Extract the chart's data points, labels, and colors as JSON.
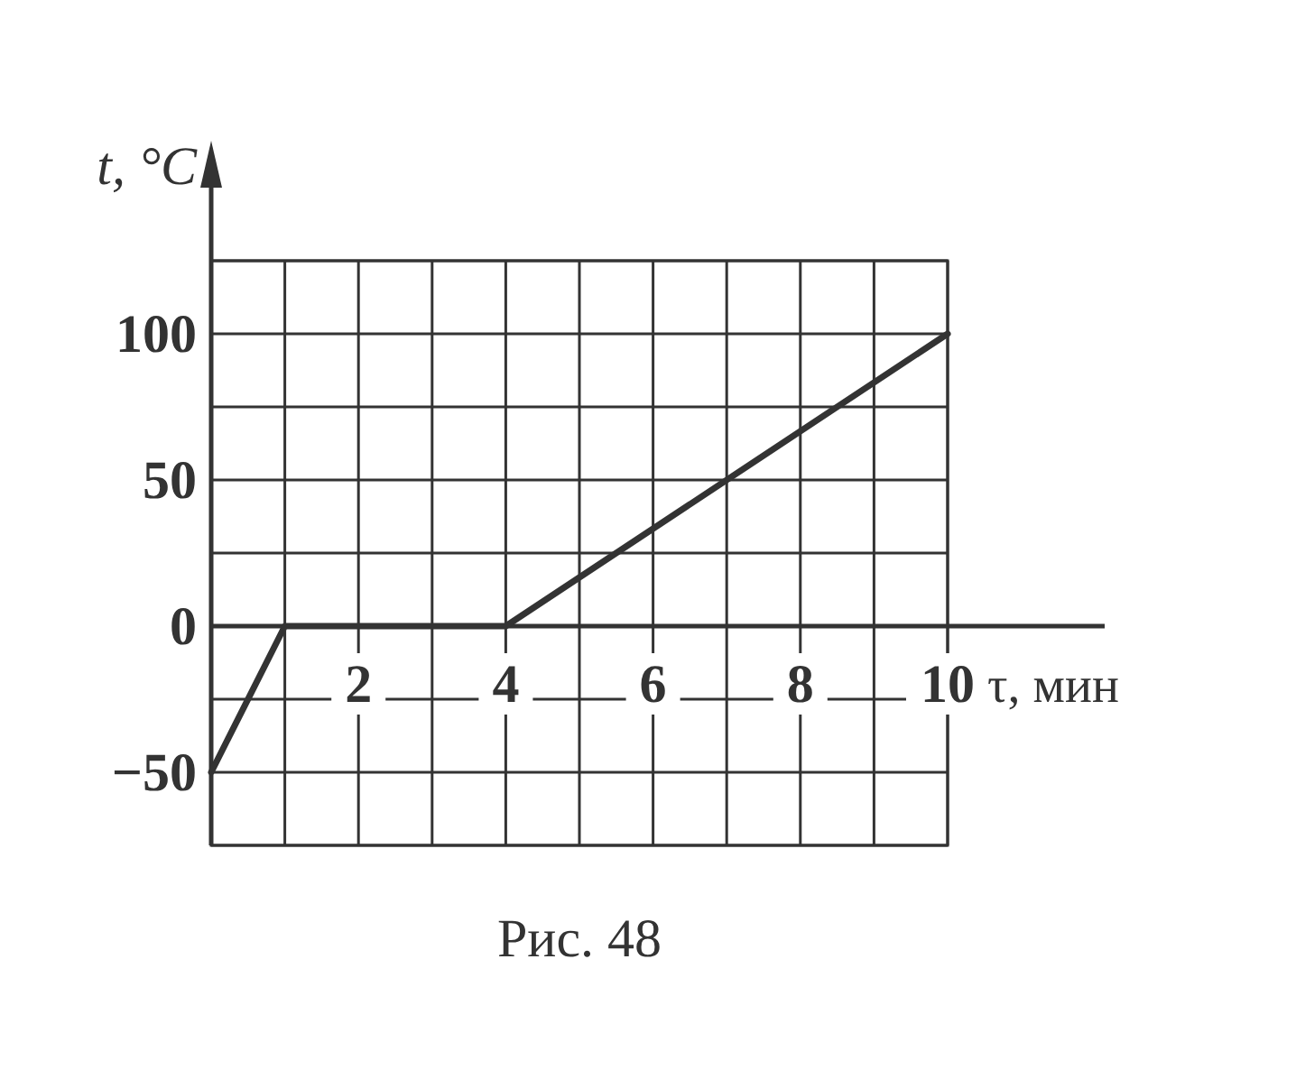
{
  "chart_data": {
    "type": "line",
    "xlabel": "τ, мин",
    "ylabel": "t, °C",
    "x": [
      0,
      1,
      4,
      10
    ],
    "series": [
      {
        "color": "#333333",
        "values": [
          -50,
          0,
          0,
          100
        ]
      }
    ],
    "xlim": [
      0,
      10
    ],
    "ylim": [
      -75,
      125
    ],
    "xticks": [
      {
        "value": 1,
        "label": null
      },
      2,
      {
        "value": 3,
        "label": null
      },
      4,
      {
        "value": 5,
        "label": null
      },
      6,
      {
        "value": 7,
        "label": null
      },
      8,
      {
        "value": 9,
        "label": null
      },
      10
    ],
    "yticks": [
      {
        "value": -75,
        "label": null
      },
      -50,
      {
        "value": -25,
        "label": null
      },
      0,
      {
        "value": 25,
        "label": null
      },
      50,
      {
        "value": 75,
        "label": null
      },
      100,
      {
        "value": 125,
        "label": null
      }
    ],
    "grid": true,
    "marker": "none",
    "line_style": "solid",
    "annotations": [
      "Рис. 48"
    ]
  }
}
